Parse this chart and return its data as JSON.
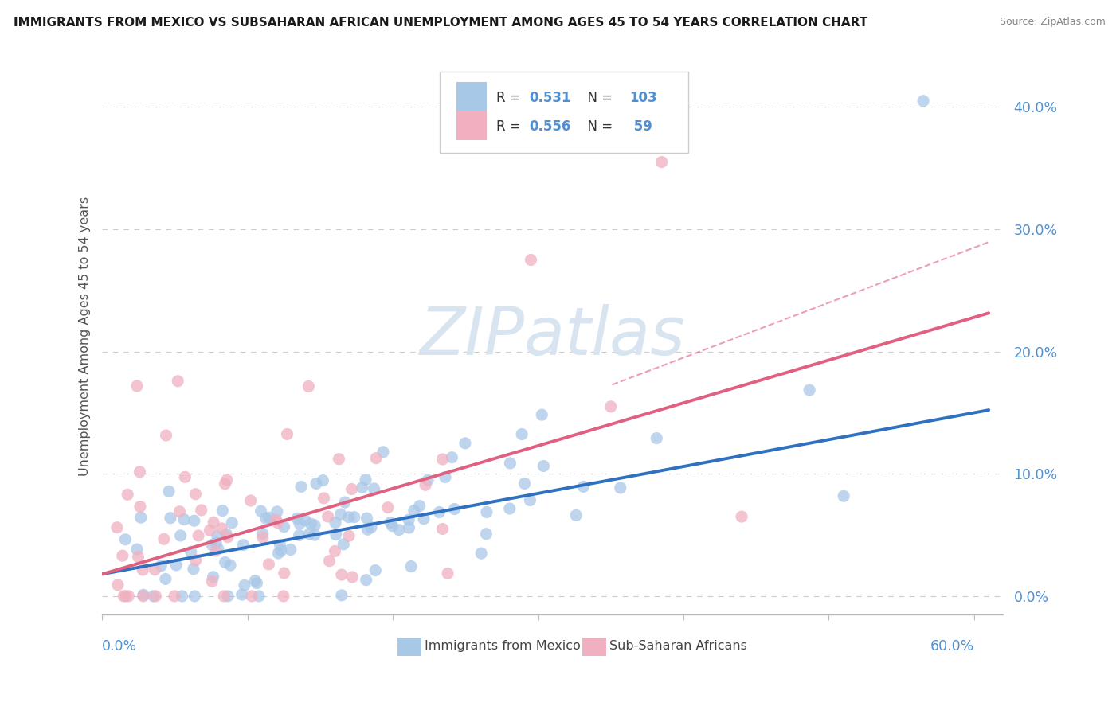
{
  "title": "IMMIGRANTS FROM MEXICO VS SUBSAHARAN AFRICAN UNEMPLOYMENT AMONG AGES 45 TO 54 YEARS CORRELATION CHART",
  "source": "Source: ZipAtlas.com",
  "ylabel": "Unemployment Among Ages 45 to 54 years",
  "xlim": [
    0.0,
    0.62
  ],
  "ylim": [
    -0.015,
    0.44
  ],
  "yticks": [
    0.0,
    0.1,
    0.2,
    0.3,
    0.4
  ],
  "ytick_labels": [
    "0.0%",
    "10.0%",
    "20.0%",
    "30.0%",
    "40.0%"
  ],
  "xticks": [
    0.0,
    0.1,
    0.2,
    0.3,
    0.4,
    0.5,
    0.6
  ],
  "blue_color": "#a8c8e8",
  "pink_color": "#f0b0c0",
  "blue_line_color": "#3070c0",
  "pink_line_color": "#e06080",
  "label_color": "#5090d0",
  "watermark_color": "#d8e4f0",
  "background_color": "#ffffff",
  "seed": 42,
  "blue_R": 0.531,
  "blue_N": 103,
  "pink_R": 0.556,
  "pink_N": 59,
  "blue_slope": 0.22,
  "blue_intercept": 0.018,
  "pink_slope": 0.35,
  "pink_intercept": 0.018,
  "pink_ci_slope": 0.3,
  "pink_ci_intercept": 0.015
}
